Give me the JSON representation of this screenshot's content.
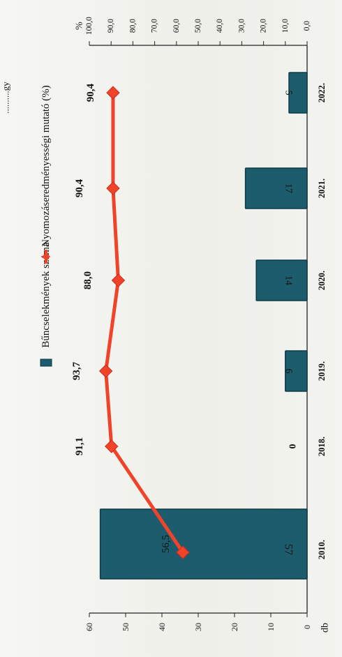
{
  "chart_data": {
    "type": "bar+line",
    "orientation": "rotated-90",
    "categories": [
      "2010.",
      "2018.",
      "2019.",
      "2020.",
      "2021.",
      "2022."
    ],
    "series": [
      {
        "name": "Bűncselekmények száma",
        "type": "bar",
        "axis": "left",
        "values": [
          57,
          0,
          6,
          14,
          17,
          5
        ],
        "labels": [
          "57",
          "0",
          "6",
          "14",
          "17",
          "5"
        ],
        "color": "#1d5c6d"
      },
      {
        "name": "Nyomozáseredményességi mutató (%)",
        "type": "line",
        "axis": "right",
        "values": [
          56.5,
          91.1,
          93.7,
          88.0,
          90.4,
          90.4
        ],
        "labels": [
          "56,5",
          "91,1",
          "93,7",
          "88,0",
          "90,4",
          "90,4"
        ],
        "color": "#f0432a"
      }
    ],
    "left_axis": {
      "label": "db",
      "ylim": [
        0,
        60
      ],
      "ticks": [
        "0",
        "10",
        "20",
        "30",
        "40",
        "50",
        "60"
      ]
    },
    "right_axis": {
      "label": "%",
      "ylim": [
        0,
        100
      ],
      "ticks": [
        "0,0",
        "10,0",
        "20,0",
        "30,0",
        "40,0",
        "50,0",
        "60,0",
        "70,0",
        "80,0",
        "90,0",
        "100,0"
      ]
    },
    "legend_position": "top",
    "top_text_fragment": "..........gy"
  }
}
